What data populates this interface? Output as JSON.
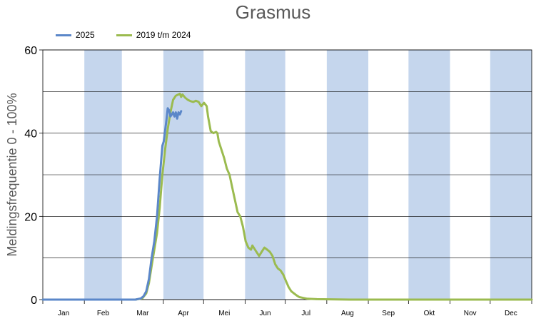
{
  "chart_data": {
    "type": "line",
    "title": "Grasmus",
    "ylabel": "Meldingsfrequentie 0 - 100%",
    "xlabel": "",
    "ylim": [
      0,
      60
    ],
    "yticks": [
      0,
      20,
      40,
      60
    ],
    "grid": true,
    "legend_position": "top-left",
    "months": [
      "Jan",
      "Feb",
      "Mar",
      "Apr",
      "Mei",
      "Jun",
      "Jul",
      "Aug",
      "Sep",
      "Okt",
      "Nov",
      "Dec"
    ],
    "colors": {
      "band": "#c5d6ed",
      "series_2025": "#5b87c9",
      "series_hist": "#9bbb4f"
    },
    "series": [
      {
        "name": "2025",
        "points": [
          [
            1,
            0
          ],
          [
            70,
            0
          ],
          [
            74,
            0.3
          ],
          [
            76,
            0.8
          ],
          [
            78,
            2
          ],
          [
            80,
            5
          ],
          [
            82,
            10
          ],
          [
            84,
            14
          ],
          [
            86,
            20
          ],
          [
            88,
            29
          ],
          [
            90,
            37
          ],
          [
            91,
            38
          ],
          [
            93,
            43
          ],
          [
            94,
            46
          ],
          [
            95,
            45.5
          ],
          [
            96,
            44
          ],
          [
            97,
            44.5
          ],
          [
            98,
            45
          ],
          [
            99,
            44
          ],
          [
            100,
            45
          ],
          [
            101,
            43.5
          ],
          [
            102,
            45
          ],
          [
            103,
            44.5
          ],
          [
            104,
            45.3
          ]
        ]
      },
      {
        "name": "2019 t/m 2024",
        "points": [
          [
            1,
            0
          ],
          [
            70,
            0
          ],
          [
            75,
            0.3
          ],
          [
            78,
            1.5
          ],
          [
            80,
            4
          ],
          [
            82,
            8
          ],
          [
            84,
            12
          ],
          [
            86,
            16
          ],
          [
            88,
            22
          ],
          [
            90,
            30
          ],
          [
            92,
            36
          ],
          [
            94,
            41
          ],
          [
            96,
            45
          ],
          [
            98,
            48
          ],
          [
            100,
            49
          ],
          [
            102,
            49.3
          ],
          [
            103,
            49.5
          ],
          [
            104,
            48.7
          ],
          [
            105,
            49.3
          ],
          [
            107,
            48.5
          ],
          [
            109,
            48
          ],
          [
            111,
            47.7
          ],
          [
            113,
            47.5
          ],
          [
            115,
            47.8
          ],
          [
            117,
            47.5
          ],
          [
            119,
            46.5
          ],
          [
            121,
            47.3
          ],
          [
            123,
            46.5
          ],
          [
            124,
            44
          ],
          [
            126,
            40.5
          ],
          [
            128,
            40
          ],
          [
            130,
            40.3
          ],
          [
            131,
            40
          ],
          [
            132,
            38
          ],
          [
            134,
            36
          ],
          [
            136,
            34
          ],
          [
            138,
            31.5
          ],
          [
            140,
            30
          ],
          [
            142,
            27
          ],
          [
            144,
            24
          ],
          [
            146,
            21
          ],
          [
            148,
            20
          ],
          [
            150,
            17.5
          ],
          [
            152,
            14
          ],
          [
            154,
            12.5
          ],
          [
            156,
            12
          ],
          [
            157,
            13
          ],
          [
            159,
            12
          ],
          [
            161,
            11
          ],
          [
            162,
            10.5
          ],
          [
            164,
            11.5
          ],
          [
            166,
            12.5
          ],
          [
            168,
            12
          ],
          [
            170,
            11.5
          ],
          [
            172,
            10.5
          ],
          [
            174,
            8.5
          ],
          [
            176,
            7.5
          ],
          [
            178,
            7
          ],
          [
            180,
            6
          ],
          [
            182,
            4.5
          ],
          [
            184,
            3
          ],
          [
            186,
            2
          ],
          [
            188,
            1.5
          ],
          [
            190,
            1
          ],
          [
            192,
            0.6
          ],
          [
            195,
            0.4
          ],
          [
            198,
            0.2
          ],
          [
            205,
            0.1
          ],
          [
            230,
            0
          ],
          [
            365,
            0
          ]
        ]
      }
    ]
  }
}
